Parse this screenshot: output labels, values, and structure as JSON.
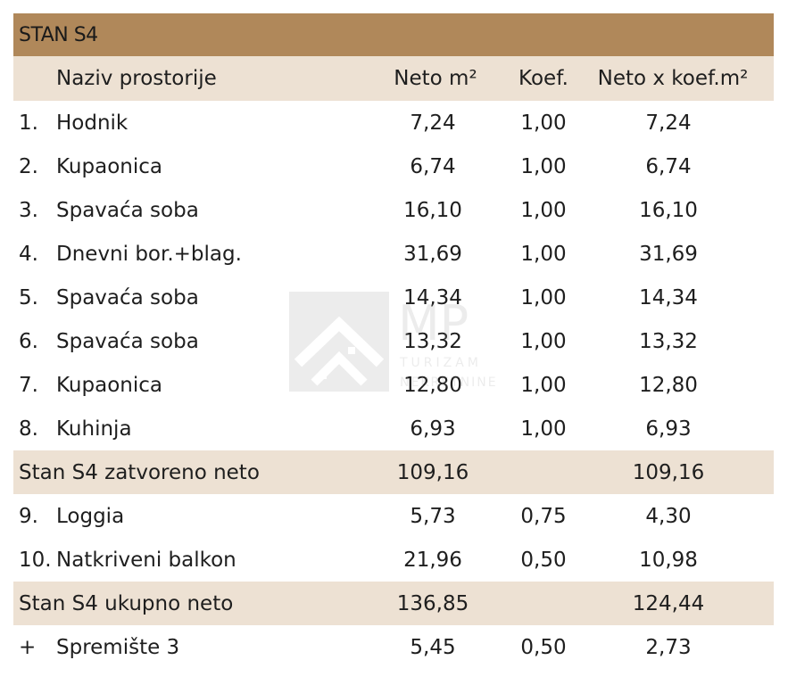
{
  "title": "STAN S4",
  "header": {
    "name": "Naziv prostorije",
    "neto": "Neto m²",
    "koef": "Koef.",
    "result": "Neto x koef.m²"
  },
  "rows": [
    {
      "num": "1.",
      "name": "Hodnik",
      "neto": "7,24",
      "koef": "1,00",
      "result": "7,24"
    },
    {
      "num": "2.",
      "name": "Kupaonica",
      "neto": "6,74",
      "koef": "1,00",
      "result": "6,74"
    },
    {
      "num": "3.",
      "name": "Spavaća soba",
      "neto": "16,10",
      "koef": "1,00",
      "result": "16,10"
    },
    {
      "num": "4.",
      "name": "Dnevni bor.+blag.",
      "neto": "31,69",
      "koef": "1,00",
      "result": "31,69"
    },
    {
      "num": "5.",
      "name": "Spavaća soba",
      "neto": "14,34",
      "koef": "1,00",
      "result": "14,34"
    },
    {
      "num": "6.",
      "name": "Spavaća soba",
      "neto": "13,32",
      "koef": "1,00",
      "result": "13,32"
    },
    {
      "num": "7.",
      "name": "Kupaonica",
      "neto": "12,80",
      "koef": "1,00",
      "result": "12,80"
    },
    {
      "num": "8.",
      "name": "Kuhinja",
      "neto": "6,93",
      "koef": "1,00",
      "result": "6,93"
    }
  ],
  "subtotal_closed": {
    "label": "Stan S4 zatvoreno neto",
    "neto": "109,16",
    "result": "109,16"
  },
  "rows_open": [
    {
      "num": "9.",
      "name": "Loggia",
      "neto": "5,73",
      "koef": "0,75",
      "result": "4,30"
    },
    {
      "num": "10.",
      "name": "Natkriveni balkon",
      "neto": "21,96",
      "koef": "0,50",
      "result": "10,98"
    }
  ],
  "total": {
    "label": "Stan S4 ukupno neto",
    "neto": "136,85",
    "result": "124,44"
  },
  "storage": {
    "num": "+",
    "name": "Spremište 3",
    "neto": "5,45",
    "koef": "0,50",
    "result": "2,73"
  },
  "watermark": {
    "logo_text": "MP",
    "tagline_1": "TURIZAM",
    "tagline_2": "NEKRETNINE"
  },
  "colors": {
    "title_bg": "#b0885a",
    "band_bg": "#ede1d3"
  }
}
